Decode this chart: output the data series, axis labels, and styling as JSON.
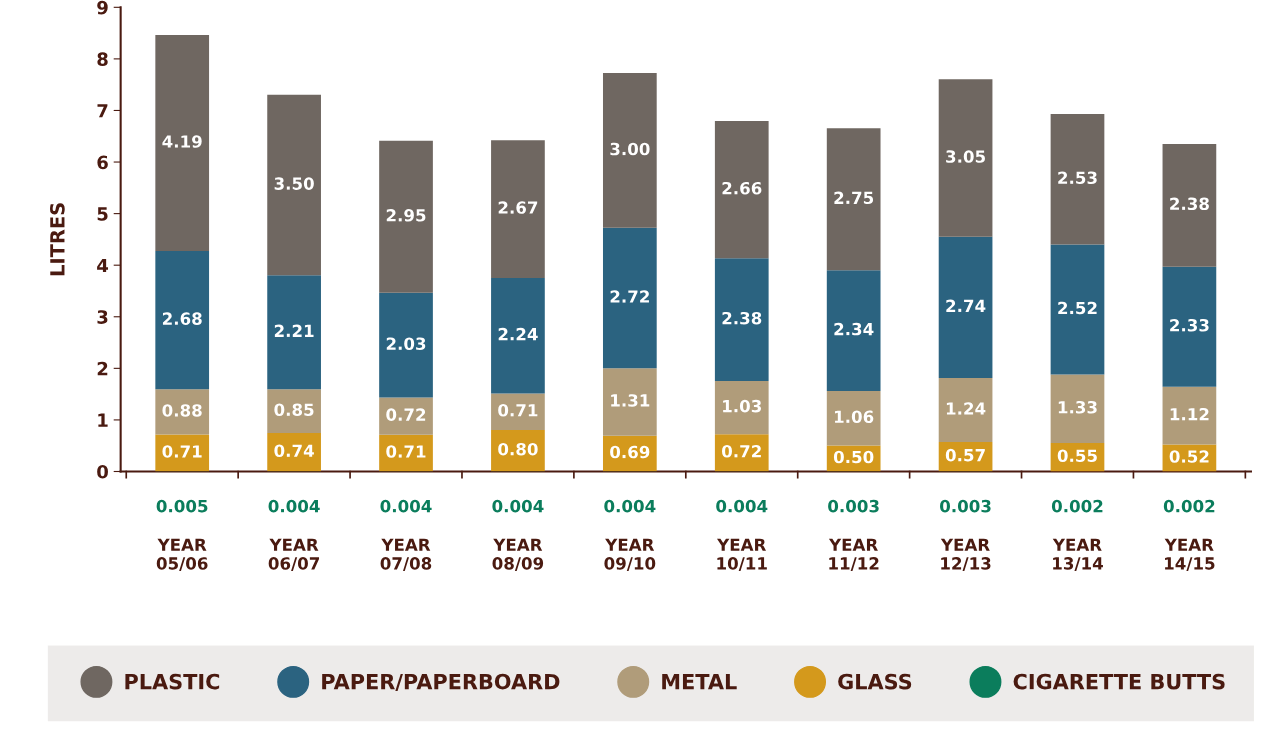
{
  "chart_data": {
    "type": "bar",
    "stacked": true,
    "ylabel": "LITRES",
    "categories": [
      "YEAR\n05/06",
      "YEAR\n06/07",
      "YEAR\n07/08",
      "YEAR\n08/09",
      "YEAR\n09/10",
      "YEAR\n10/11",
      "YEAR\n11/12",
      "YEAR\n12/13",
      "YEAR\n13/14",
      "YEAR\n14/15"
    ],
    "series": [
      {
        "name": "CIGARETTE BUTTS",
        "color": "#0b7d5c",
        "values": [
          0.005,
          0.004,
          0.004,
          0.004,
          0.004,
          0.004,
          0.003,
          0.003,
          0.002,
          0.002
        ],
        "value_labels": [
          "0.005",
          "0.004",
          "0.004",
          "0.004",
          "0.004",
          "0.004",
          "0.003",
          "0.003",
          "0.002",
          "0.002"
        ]
      },
      {
        "name": "GLASS",
        "color": "#d4991c",
        "values": [
          0.71,
          0.74,
          0.71,
          0.8,
          0.69,
          0.72,
          0.5,
          0.57,
          0.55,
          0.52
        ],
        "value_labels": [
          "0.71",
          "0.74",
          "0.71",
          "0.80",
          "0.69",
          "0.72",
          "0.50",
          "0.57",
          "0.55",
          "0.52"
        ]
      },
      {
        "name": "METAL",
        "color": "#b09c7a",
        "values": [
          0.88,
          0.85,
          0.72,
          0.71,
          1.31,
          1.03,
          1.06,
          1.24,
          1.33,
          1.12
        ],
        "value_labels": [
          "0.88",
          "0.85",
          "0.72",
          "0.71",
          "1.31",
          "1.03",
          "1.06",
          "1.24",
          "1.33",
          "1.12"
        ]
      },
      {
        "name": "PAPER/PAPERBOARD",
        "color": "#2b6380",
        "values": [
          2.68,
          2.21,
          2.03,
          2.24,
          2.72,
          2.38,
          2.34,
          2.74,
          2.52,
          2.33
        ],
        "value_labels": [
          "2.68",
          "2.21",
          "2.03",
          "2.24",
          "2.72",
          "2.38",
          "2.34",
          "2.74",
          "2.52",
          "2.33"
        ]
      },
      {
        "name": "PLASTIC",
        "color": "#6f6761",
        "values": [
          4.19,
          3.5,
          2.95,
          2.67,
          3.0,
          2.66,
          2.75,
          3.05,
          2.53,
          2.38
        ],
        "value_labels": [
          "4.19",
          "3.50",
          "2.95",
          "2.67",
          "3.00",
          "2.66",
          "2.75",
          "3.05",
          "2.53",
          "2.38"
        ]
      }
    ],
    "ylim": [
      0,
      9
    ],
    "yticks": [
      0,
      1,
      2,
      3,
      4,
      5,
      6,
      7,
      8,
      9
    ],
    "legend": "bottom",
    "marker": "circle"
  }
}
